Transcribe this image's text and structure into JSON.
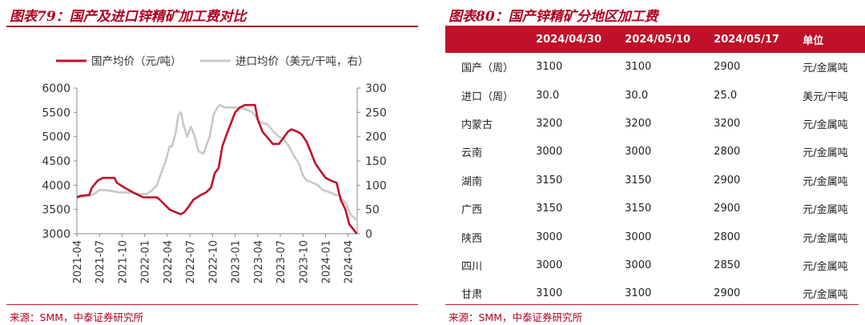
{
  "left_panel": {
    "title": "图表79：国产及进口锌精矿加工费对比",
    "source": "来源：SMM，中泰证券研究所"
  },
  "right_panel": {
    "title": "图表80：国产锌精矿分地区加工费",
    "source": "来源：SMM，中泰证券研究所"
  },
  "colors": {
    "domestic": "#c0102a",
    "imported": "#c8c8c8",
    "accent": "#c0102a"
  },
  "chart_data": [
    {
      "type": "line",
      "title": "",
      "legend_placement": "top",
      "x_tick_labels": [
        "2021-04",
        "2021-07",
        "2021-10",
        "2022-01",
        "2022-04",
        "2022-07",
        "2022-10",
        "2023-01",
        "2023-04",
        "2023-07",
        "2023-10",
        "2024-01",
        "2024-04"
      ],
      "x_months": [
        "2021-04",
        "2024-05"
      ],
      "y_left_ticks": [
        3000,
        3500,
        4000,
        4500,
        5000,
        5500,
        6000
      ],
      "y_right_ticks": [
        0,
        50,
        100,
        150,
        200,
        250,
        300
      ],
      "ylim_left": [
        3000,
        6000
      ],
      "ylim_right": [
        0,
        300
      ],
      "grid": false,
      "series": [
        {
          "name": "国产均价（元/吨）",
          "axis": "left",
          "points": [
            [
              "2021-04-01",
              3750
            ],
            [
              "2021-04-15",
              3780
            ],
            [
              "2021-05-20",
              3800
            ],
            [
              "2021-06-01",
              3950
            ],
            [
              "2021-06-25",
              4100
            ],
            [
              "2021-07-15",
              4150
            ],
            [
              "2021-09-01",
              4150
            ],
            [
              "2021-09-10",
              4050
            ],
            [
              "2021-10-10",
              3950
            ],
            [
              "2021-11-15",
              3850
            ],
            [
              "2021-12-25",
              3750
            ],
            [
              "2022-02-20",
              3750
            ],
            [
              "2022-03-01",
              3700
            ],
            [
              "2022-04-10",
              3500
            ],
            [
              "2022-05-01",
              3450
            ],
            [
              "2022-05-25",
              3400
            ],
            [
              "2022-06-10",
              3450
            ],
            [
              "2022-06-25",
              3550
            ],
            [
              "2022-07-15",
              3700
            ],
            [
              "2022-08-15",
              3800
            ],
            [
              "2022-09-05",
              3850
            ],
            [
              "2022-09-25",
              3950
            ],
            [
              "2022-10-10",
              4250
            ],
            [
              "2022-10-25",
              4350
            ],
            [
              "2022-11-10",
              4800
            ],
            [
              "2022-12-01",
              5100
            ],
            [
              "2022-12-20",
              5350
            ],
            [
              "2023-01-01",
              5500
            ],
            [
              "2023-01-20",
              5600
            ],
            [
              "2023-02-10",
              5650
            ],
            [
              "2023-03-20",
              5650
            ],
            [
              "2023-04-01",
              5350
            ],
            [
              "2023-04-20",
              5100
            ],
            [
              "2023-05-15",
              4950
            ],
            [
              "2023-06-01",
              4850
            ],
            [
              "2023-06-25",
              4850
            ],
            [
              "2023-07-10",
              4950
            ],
            [
              "2023-08-01",
              5100
            ],
            [
              "2023-08-15",
              5150
            ],
            [
              "2023-09-10",
              5100
            ],
            [
              "2023-09-25",
              5050
            ],
            [
              "2023-10-15",
              4900
            ],
            [
              "2023-11-01",
              4700
            ],
            [
              "2023-11-20",
              4450
            ],
            [
              "2023-12-10",
              4300
            ],
            [
              "2024-01-01",
              4150
            ],
            [
              "2024-01-20",
              4100
            ],
            [
              "2024-02-15",
              4050
            ],
            [
              "2024-03-01",
              3700
            ],
            [
              "2024-03-20",
              3500
            ],
            [
              "2024-04-05",
              3200
            ],
            [
              "2024-04-20",
              3100
            ],
            [
              "2024-05-05",
              3000
            ]
          ]
        },
        {
          "name": "进口均价（美元/干吨，右）",
          "axis": "right",
          "points": [
            [
              "2021-04-01",
              75
            ],
            [
              "2021-04-20",
              75
            ],
            [
              "2021-05-15",
              78
            ],
            [
              "2021-06-10",
              82
            ],
            [
              "2021-07-01",
              90
            ],
            [
              "2021-07-20",
              90
            ],
            [
              "2021-08-20",
              88
            ],
            [
              "2021-09-20",
              85
            ],
            [
              "2021-11-01",
              85
            ],
            [
              "2021-12-01",
              82
            ],
            [
              "2022-01-10",
              82
            ],
            [
              "2022-02-01",
              90
            ],
            [
              "2022-02-20",
              100
            ],
            [
              "2022-03-10",
              130
            ],
            [
              "2022-03-25",
              150
            ],
            [
              "2022-04-10",
              180
            ],
            [
              "2022-04-20",
              180
            ],
            [
              "2022-05-05",
              210
            ],
            [
              "2022-05-15",
              245
            ],
            [
              "2022-05-25",
              250
            ],
            [
              "2022-06-05",
              225
            ],
            [
              "2022-06-20",
              200
            ],
            [
              "2022-07-05",
              220
            ],
            [
              "2022-07-20",
              200
            ],
            [
              "2022-08-05",
              170
            ],
            [
              "2022-08-25",
              165
            ],
            [
              "2022-09-05",
              180
            ],
            [
              "2022-09-20",
              200
            ],
            [
              "2022-10-05",
              245
            ],
            [
              "2022-10-20",
              260
            ],
            [
              "2022-11-01",
              265
            ],
            [
              "2022-11-20",
              260
            ],
            [
              "2022-12-10",
              260
            ],
            [
              "2023-01-10",
              260
            ],
            [
              "2023-02-01",
              258
            ],
            [
              "2023-02-20",
              255
            ],
            [
              "2023-03-10",
              250
            ],
            [
              "2023-03-25",
              240
            ],
            [
              "2023-04-10",
              230
            ],
            [
              "2023-05-10",
              225
            ],
            [
              "2023-06-01",
              212
            ],
            [
              "2023-06-25",
              200
            ],
            [
              "2023-07-15",
              195
            ],
            [
              "2023-08-05",
              180
            ],
            [
              "2023-08-25",
              160
            ],
            [
              "2023-09-15",
              145
            ],
            [
              "2023-10-01",
              120
            ],
            [
              "2023-10-15",
              110
            ],
            [
              "2023-11-10",
              105
            ],
            [
              "2023-12-01",
              100
            ],
            [
              "2023-12-20",
              90
            ],
            [
              "2024-01-20",
              85
            ],
            [
              "2024-02-10",
              80
            ],
            [
              "2024-02-25",
              80
            ],
            [
              "2024-03-10",
              70
            ],
            [
              "2024-03-25",
              60
            ],
            [
              "2024-04-10",
              40
            ],
            [
              "2024-05-01",
              30
            ],
            [
              "2024-05-10",
              30
            ]
          ]
        }
      ]
    },
    {
      "type": "table",
      "columns": [
        "",
        "2024/04/30",
        "2024/05/10",
        "2024/05/17",
        "单位"
      ],
      "rows": [
        [
          "国产（周）",
          "3100",
          "3100",
          "2900",
          "元/金属吨"
        ],
        [
          "进口（周）",
          "30.0",
          "30.0",
          "25.0",
          "美元/干吨"
        ],
        [
          "内蒙古",
          "3200",
          "3200",
          "3200",
          "元/金属吨"
        ],
        [
          "云南",
          "3000",
          "3000",
          "2800",
          "元/金属吨"
        ],
        [
          "湖南",
          "3150",
          "3150",
          "2900",
          "元/金属吨"
        ],
        [
          "广西",
          "3150",
          "3150",
          "2900",
          "元/金属吨"
        ],
        [
          "陕西",
          "3000",
          "3000",
          "2800",
          "元/金属吨"
        ],
        [
          "四川",
          "3000",
          "3000",
          "2850",
          "元/金属吨"
        ],
        [
          "甘肃",
          "3100",
          "3100",
          "2900",
          "元/金属吨"
        ]
      ]
    }
  ]
}
